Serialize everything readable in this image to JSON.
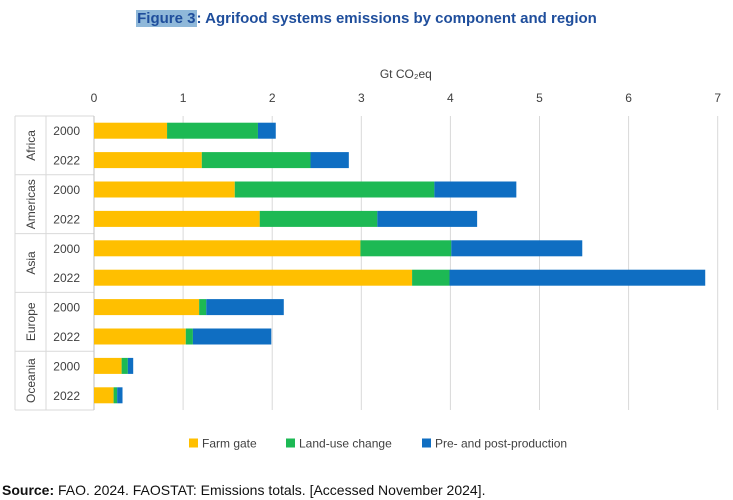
{
  "figure": {
    "number_label": "Figure 3",
    "title_rest": ": Agrifood systems emissions by component and region"
  },
  "source": {
    "label": "Source:",
    "text": " FAO. 2024. FAOSTAT: Emissions totals. [Accessed November 2024]."
  },
  "chart_data": {
    "type": "bar",
    "orientation": "horizontal",
    "stacked": true,
    "xlabel": "Gt CO₂eq",
    "xlim": [
      0,
      7
    ],
    "x_ticks": [
      0,
      1,
      2,
      3,
      4,
      5,
      6,
      7
    ],
    "axis_position": "top",
    "grid": true,
    "legend_position": "bottom",
    "groups": [
      {
        "name": "Africa",
        "bars": [
          {
            "label": "2000",
            "values": [
              0.82,
              1.02,
              0.2
            ]
          },
          {
            "label": "2022",
            "values": [
              1.21,
              1.22,
              0.43
            ]
          }
        ]
      },
      {
        "name": "Americas",
        "bars": [
          {
            "label": "2000",
            "values": [
              1.58,
              2.24,
              0.92
            ]
          },
          {
            "label": "2022",
            "values": [
              1.86,
              1.32,
              1.12
            ]
          }
        ]
      },
      {
        "name": "Asia",
        "bars": [
          {
            "label": "2000",
            "values": [
              2.99,
              1.02,
              1.47
            ]
          },
          {
            "label": "2022",
            "values": [
              3.57,
              0.42,
              2.87
            ]
          }
        ]
      },
      {
        "name": "Europe",
        "bars": [
          {
            "label": "2000",
            "values": [
              1.18,
              0.08,
              0.87
            ]
          },
          {
            "label": "2022",
            "values": [
              1.03,
              0.08,
              0.88
            ]
          }
        ]
      },
      {
        "name": "Oceania",
        "bars": [
          {
            "label": "2000",
            "values": [
              0.31,
              0.07,
              0.06
            ]
          },
          {
            "label": "2022",
            "values": [
              0.22,
              0.04,
              0.06
            ]
          }
        ]
      }
    ],
    "series": [
      {
        "name": "Farm gate",
        "color": "#ffbf00"
      },
      {
        "name": "Land-use change",
        "color": "#1db954"
      },
      {
        "name": "Pre- and post-production",
        "color": "#0f6ec2"
      }
    ]
  }
}
